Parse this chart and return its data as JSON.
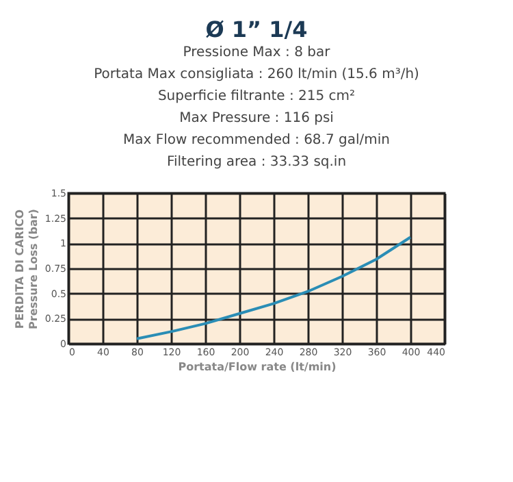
{
  "chart_data": {
    "type": "line",
    "title": "Ø 1” 1/4",
    "annotations": [
      "Pressione Max : 8 bar",
      "Portata Max consigliata : 260 lt/min (15.6 m³/h)",
      "Superficie filtrante : 215 cm²",
      "Max Pressure : 116 psi",
      "Max Flow recommended : 68.7 gal/min",
      "Filtering area : 33.33 sq.in"
    ],
    "xlabel": "Portata/Flow rate (lt/min)",
    "ylabel": "PERDITA DI CARICO\nPressure Loss (bar)",
    "x": [
      80,
      120,
      160,
      200,
      240,
      280,
      320,
      360,
      400
    ],
    "series": [
      {
        "color": "#2a8db5",
        "values": [
          0.05,
          0.12,
          0.2,
          0.3,
          0.4,
          0.52,
          0.67,
          0.84,
          1.06
        ]
      }
    ],
    "xlim": [
      0,
      440
    ],
    "xticks": [
      0,
      40,
      80,
      120,
      160,
      200,
      240,
      280,
      320,
      360,
      400,
      440
    ],
    "ylim": [
      0,
      1.5
    ],
    "yticks": [
      0,
      0.25,
      0.5,
      0.75,
      1,
      1.25,
      1.5
    ],
    "grid": true,
    "legend": false,
    "marker": "none",
    "line_style": "solid"
  }
}
